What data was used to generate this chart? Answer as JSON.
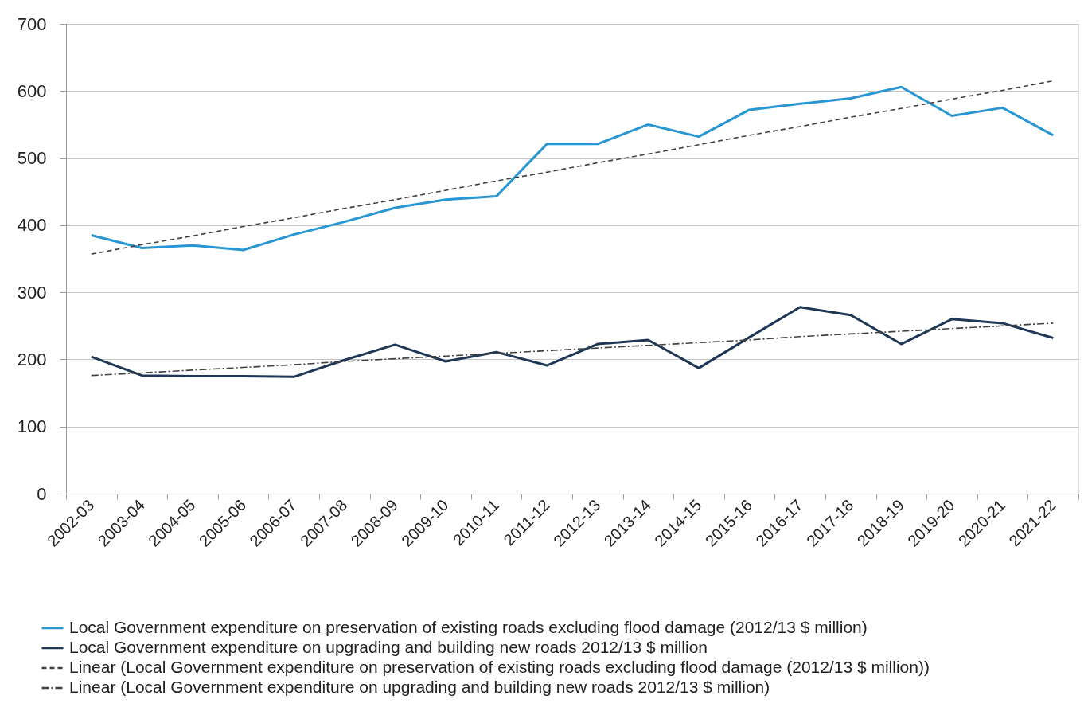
{
  "chart_data": {
    "type": "line",
    "categories": [
      "2002-03",
      "2003-04",
      "2004-05",
      "2005-06",
      "2006-07",
      "2007-08",
      "2008-09",
      "2009-10",
      "2010-11",
      "2011-12",
      "2012-13",
      "2013-14",
      "2014-15",
      "2015-16",
      "2016-17",
      "2017-18",
      "2018-19",
      "2019-20",
      "2020-21",
      "2021-22"
    ],
    "ylim": [
      0,
      700
    ],
    "yticks": [
      0,
      100,
      200,
      300,
      400,
      500,
      600,
      700
    ],
    "grid": "y",
    "legend": "bottom",
    "series": [
      {
        "name": "Local Government expenditure on preservation of existing roads excluding flood damage (2012/13 $ million)",
        "color": "#2896d2",
        "values": [
          385,
          366,
          370,
          363,
          386,
          405,
          426,
          438,
          443,
          521,
          521,
          550,
          532,
          572,
          581,
          589,
          606,
          563,
          575,
          534
        ]
      },
      {
        "name": "Local Government expenditure on upgrading and building new roads 2012/13 $ million",
        "color": "#1e3755",
        "values": [
          204,
          176,
          175,
          175,
          174,
          199,
          222,
          197,
          211,
          191,
          223,
          229,
          187,
          233,
          278,
          266,
          223,
          260,
          254,
          232
        ]
      },
      {
        "name": "Linear (Local Government expenditure on preservation of existing roads excluding flood damage (2012/13 $ million))",
        "color": "#404040",
        "type": "line",
        "line_style": "dashed",
        "values": [
          357,
          371,
          384,
          398,
          411,
          425,
          438,
          452,
          466,
          479,
          493,
          506,
          520,
          534,
          547,
          561,
          574,
          588,
          601,
          615
        ]
      },
      {
        "name": "Linear (Local Government expenditure on upgrading and building new roads 2012/13 $ million)",
        "color": "#404040",
        "type": "line",
        "line_style": "dashdot",
        "values": [
          176,
          180,
          184,
          188,
          192,
          197,
          201,
          205,
          209,
          213,
          217,
          221,
          225,
          229,
          234,
          238,
          242,
          246,
          250,
          254
        ]
      }
    ]
  }
}
